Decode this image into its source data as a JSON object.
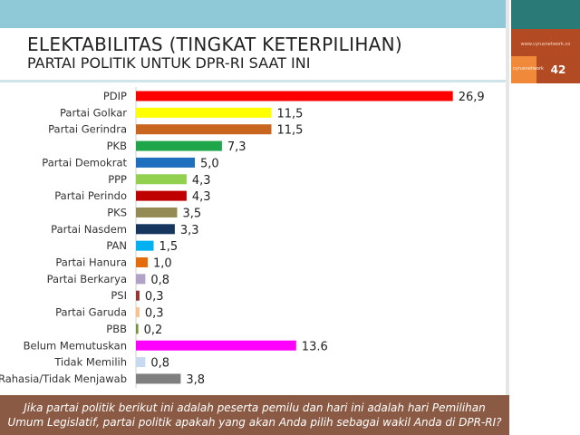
{
  "header": {
    "title": "ELEKTABILITAS (TINGKAT KETERPILIHAN)",
    "subtitle": "PARTAI POLITIK UNTUK DPR-RI SAAT INI",
    "site_url": "www.cyrusnetwork.co",
    "brand": "cyrusnetwork",
    "page_number": "42"
  },
  "footer": {
    "line1": "Jika partai politik berikut ini adalah peserta pemilu dan hari ini adalah hari Pemilihan",
    "line2": "Umum Legislatif, partai politik apakah yang akan Anda pilih sebagai wakil Anda di DPR-RI?"
  },
  "chart_data": {
    "type": "bar",
    "orientation": "horizontal",
    "title": "ELEKTABILITAS (TINGKAT KETERPILIHAN)",
    "subtitle": "PARTAI POLITIK UNTUK DPR-RI SAAT INI",
    "xlabel": "",
    "ylabel": "",
    "xlim": [
      0,
      30
    ],
    "grid": false,
    "legend": "none",
    "categories": [
      "PDIP",
      "Partai Golkar",
      "Partai Gerindra",
      "PKB",
      "Partai Demokrat",
      "PPP",
      "Partai Perindo",
      "PKS",
      "Partai Nasdem",
      "PAN",
      "Partai Hanura",
      "Partai Berkarya",
      "PSI",
      "Partai Garuda",
      "PBB",
      "Belum Memutuskan",
      "Tidak Memilih",
      "Rahasia/Tidak Menjawab"
    ],
    "values": [
      26.9,
      11.5,
      11.5,
      7.3,
      5.0,
      4.3,
      4.3,
      3.5,
      3.3,
      1.5,
      1.0,
      0.8,
      0.3,
      0.3,
      0.2,
      13.6,
      0.8,
      3.8
    ],
    "value_labels": [
      "26,9",
      "11,5",
      "11,5",
      "7,3",
      "5,0",
      "4,3",
      "4,3",
      "3,5",
      "3,3",
      "1,5",
      "1,0",
      "0,8",
      "0,3",
      "0,3",
      "0,2",
      "13.6",
      "0,8",
      "3,8"
    ],
    "colors": [
      "#ff0000",
      "#ffff00",
      "#c8651e",
      "#1fa64a",
      "#1f6fbf",
      "#92d050",
      "#c00000",
      "#948a54",
      "#17365d",
      "#00b0f0",
      "#e46c0a",
      "#b3a2c7",
      "#963634",
      "#fac090",
      "#77933c",
      "#ff00ff",
      "#c6d9f1",
      "#7f7f7f"
    ]
  }
}
